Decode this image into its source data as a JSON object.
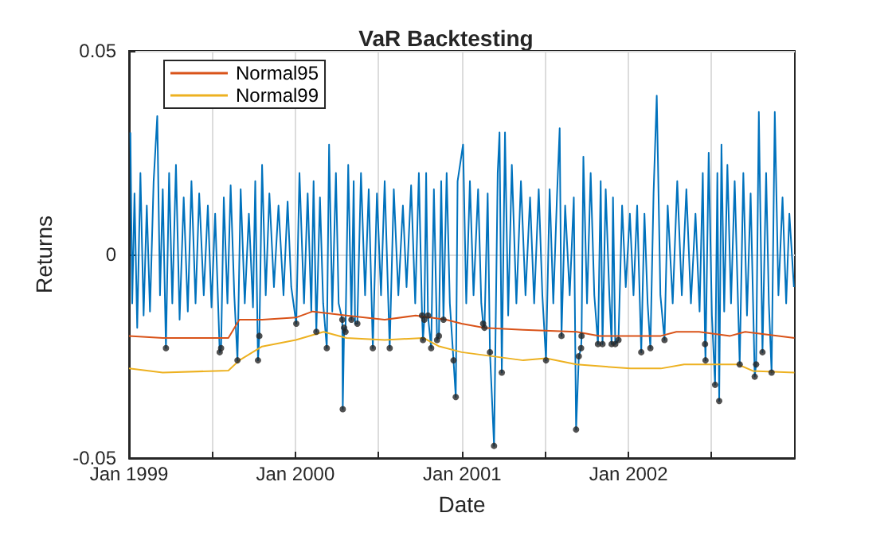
{
  "chart_data": {
    "type": "line",
    "title": "VaR Backtesting",
    "xlabel": "Date",
    "ylabel": "Returns",
    "xlim": [
      "1999-01-01",
      "2003-01-01"
    ],
    "xticks": [
      {
        "value": "1999-01-01",
        "label": "Jan 1999"
      },
      {
        "value": "1999-07-01",
        "label": null
      },
      {
        "value": "2000-01-01",
        "label": "Jan 2000"
      },
      {
        "value": "2000-07-01",
        "label": null
      },
      {
        "value": "2001-01-01",
        "label": "Jan 2001"
      },
      {
        "value": "2001-07-01",
        "label": null
      },
      {
        "value": "2002-01-01",
        "label": "Jan 2002"
      },
      {
        "value": "2002-07-01",
        "label": null
      }
    ],
    "ylim": [
      -0.05,
      0.05
    ],
    "yticks": [
      -0.05,
      0,
      0.05
    ],
    "grid": true,
    "legend": "top left",
    "marker": "none",
    "line_style": "solid",
    "series": [
      {
        "color": "#0072bd",
        "x": [
          "1999-01-04",
          "1999-01-08",
          "1999-01-13",
          "1999-01-19",
          "1999-01-26",
          "1999-02-02",
          "1999-02-09",
          "1999-02-16",
          "1999-02-24",
          "1999-03-04",
          "1999-03-10",
          "1999-03-16",
          "1999-03-23",
          "1999-03-30",
          "1999-04-06",
          "1999-04-14",
          "1999-04-22",
          "1999-05-01",
          "1999-05-10",
          "1999-05-18",
          "1999-05-27",
          "1999-06-04",
          "1999-06-14",
          "1999-06-23",
          "1999-07-01",
          "1999-07-09",
          "1999-07-19",
          "1999-07-22",
          "1999-07-28",
          "1999-08-05",
          "1999-08-12",
          "1999-08-20",
          "1999-08-27",
          "1999-09-03",
          "1999-09-12",
          "1999-09-21",
          "1999-09-30",
          "1999-10-05",
          "1999-10-11",
          "1999-10-14",
          "1999-10-20",
          "1999-10-28",
          "1999-11-05",
          "1999-11-15",
          "1999-11-25",
          "1999-12-06",
          "1999-12-15",
          "1999-12-23",
          "2000-01-03",
          "2000-01-10",
          "2000-01-20",
          "2000-01-28",
          "2000-02-05",
          "2000-02-10",
          "2000-02-16",
          "2000-02-24",
          "2000-03-02",
          "2000-03-10",
          "2000-03-15",
          "2000-03-22",
          "2000-03-30",
          "2000-04-05",
          "2000-04-13",
          "2000-04-14",
          "2000-04-17",
          "2000-04-20",
          "2000-04-26",
          "2000-05-03",
          "2000-05-08",
          "2000-05-11",
          "2000-05-16",
          "2000-05-24",
          "2000-06-02",
          "2000-06-10",
          "2000-06-19",
          "2000-06-28",
          "2000-07-07",
          "2000-07-15",
          "2000-07-26",
          "2000-08-04",
          "2000-08-14",
          "2000-08-24",
          "2000-09-01",
          "2000-09-11",
          "2000-09-20",
          "2000-09-28",
          "2000-10-05",
          "2000-10-07",
          "2000-10-10",
          "2000-10-14",
          "2000-10-18",
          "2000-10-25",
          "2000-10-31",
          "2000-11-07",
          "2000-11-11",
          "2000-11-16",
          "2000-11-21",
          "2000-11-28",
          "2000-12-05",
          "2000-12-13",
          "2000-12-18",
          "2000-12-22",
          "2001-01-03",
          "2001-01-10",
          "2001-01-18",
          "2001-01-26",
          "2001-02-05",
          "2001-02-12",
          "2001-02-16",
          "2001-02-19",
          "2001-02-26",
          "2001-03-03",
          "2001-03-12",
          "2001-03-20",
          "2001-03-24",
          "2001-03-29",
          "2001-04-05",
          "2001-04-12",
          "2001-04-20",
          "2001-04-30",
          "2001-05-10",
          "2001-05-20",
          "2001-05-30",
          "2001-06-08",
          "2001-06-18",
          "2001-06-26",
          "2001-07-04",
          "2001-07-12",
          "2001-07-20",
          "2001-07-28",
          "2001-08-03",
          "2001-08-07",
          "2001-08-15",
          "2001-08-25",
          "2001-09-03",
          "2001-09-08",
          "2001-09-14",
          "2001-09-19",
          "2001-09-20",
          "2001-09-24",
          "2001-10-02",
          "2001-10-10",
          "2001-10-18",
          "2001-10-26",
          "2001-11-01",
          "2001-11-05",
          "2001-11-12",
          "2001-11-20",
          "2001-11-25",
          "2001-11-28",
          "2001-12-03",
          "2001-12-10",
          "2001-12-18",
          "2001-12-26",
          "2002-01-04",
          "2002-01-12",
          "2002-01-20",
          "2002-01-29",
          "2002-02-05",
          "2002-02-12",
          "2002-02-18",
          "2002-02-25",
          "2002-03-04",
          "2002-03-12",
          "2002-03-21",
          "2002-03-28",
          "2002-04-08",
          "2002-04-18",
          "2002-04-28",
          "2002-05-08",
          "2002-05-18",
          "2002-05-28",
          "2002-06-06",
          "2002-06-13",
          "2002-06-18",
          "2002-06-19",
          "2002-06-26",
          "2002-07-03",
          "2002-07-10",
          "2002-07-15",
          "2002-07-19",
          "2002-07-24",
          "2002-07-30",
          "2002-08-06",
          "2002-08-14",
          "2002-08-22",
          "2002-09-02",
          "2002-09-10",
          "2002-09-18",
          "2002-09-26",
          "2002-10-05",
          "2002-10-08",
          "2002-10-14",
          "2002-10-22",
          "2002-10-30",
          "2002-11-05",
          "2002-11-11",
          "2002-11-18",
          "2002-11-26",
          "2002-12-05",
          "2002-12-13",
          "2002-12-20",
          "2002-12-30"
        ],
        "values": [
          0.03,
          -0.012,
          0.015,
          -0.018,
          0.02,
          -0.015,
          0.012,
          -0.014,
          0.018,
          0.034,
          -0.01,
          0.016,
          -0.023,
          0.02,
          -0.012,
          0.022,
          -0.016,
          0.014,
          -0.014,
          0.018,
          -0.012,
          0.015,
          -0.01,
          0.012,
          -0.013,
          0.01,
          -0.024,
          -0.023,
          0.014,
          -0.012,
          0.017,
          -0.01,
          -0.026,
          0.016,
          -0.012,
          0.01,
          -0.013,
          0.018,
          -0.026,
          -0.02,
          0.022,
          -0.01,
          0.015,
          -0.008,
          0.012,
          -0.01,
          0.013,
          -0.008,
          -0.017,
          0.02,
          -0.012,
          0.015,
          -0.014,
          0.018,
          -0.019,
          0.014,
          -0.012,
          -0.023,
          0.027,
          -0.014,
          0.02,
          -0.012,
          -0.016,
          -0.038,
          -0.018,
          -0.019,
          0.022,
          -0.016,
          0.018,
          -0.017,
          -0.017,
          0.02,
          -0.01,
          0.016,
          -0.023,
          0.015,
          -0.01,
          0.018,
          -0.023,
          0.016,
          -0.01,
          0.012,
          -0.008,
          0.017,
          -0.012,
          0.02,
          -0.015,
          -0.021,
          -0.016,
          0.02,
          -0.015,
          -0.023,
          0.016,
          -0.021,
          -0.02,
          0.018,
          -0.016,
          0.02,
          -0.012,
          -0.026,
          -0.035,
          0.018,
          0.027,
          -0.012,
          0.018,
          -0.01,
          0.016,
          -0.012,
          -0.017,
          -0.018,
          0.015,
          -0.024,
          -0.047,
          0.02,
          0.03,
          -0.029,
          0.03,
          -0.015,
          0.022,
          -0.012,
          0.018,
          -0.01,
          0.014,
          -0.012,
          0.016,
          -0.01,
          -0.026,
          0.016,
          -0.012,
          0.014,
          0.031,
          -0.02,
          0.012,
          -0.01,
          0.014,
          -0.043,
          -0.025,
          -0.023,
          -0.02,
          0.024,
          -0.012,
          0.02,
          -0.01,
          -0.022,
          0.018,
          -0.022,
          0.016,
          -0.01,
          -0.022,
          0.014,
          -0.022,
          -0.021,
          0.012,
          -0.008,
          0.01,
          -0.01,
          0.012,
          -0.024,
          0.01,
          -0.012,
          -0.023,
          0.015,
          0.039,
          -0.01,
          -0.021,
          0.012,
          -0.012,
          0.018,
          -0.01,
          0.016,
          -0.012,
          0.01,
          -0.014,
          0.02,
          -0.022,
          -0.026,
          0.025,
          -0.015,
          -0.032,
          0.02,
          -0.036,
          0.027,
          -0.014,
          0.022,
          -0.012,
          0.018,
          -0.027,
          0.02,
          -0.015,
          0.015,
          -0.03,
          -0.027,
          0.035,
          -0.024,
          0.02,
          -0.012,
          -0.029,
          0.035,
          -0.01,
          0.014,
          -0.012,
          0.01,
          -0.008
        ]
      },
      {
        "name": "Normal95",
        "color": "#d95319",
        "x": [
          "1999-01-01",
          "1999-03-16",
          "1999-08-07",
          "1999-08-31",
          "1999-10-20",
          "2000-01-02",
          "2000-02-08",
          "2000-04-22",
          "2000-07-15",
          "2000-09-21",
          "2000-11-27",
          "2000-12-31",
          "2001-02-19",
          "2001-05-15",
          "2001-09-09",
          "2001-10-29",
          "2002-03-13",
          "2002-04-16",
          "2002-06-05",
          "2002-08-12",
          "2002-09-14",
          "2002-12-31"
        ],
        "values": [
          -0.02,
          -0.0205,
          -0.0205,
          -0.016,
          -0.016,
          -0.0155,
          -0.014,
          -0.015,
          -0.016,
          -0.015,
          -0.016,
          -0.017,
          -0.018,
          -0.0185,
          -0.019,
          -0.02,
          -0.02,
          -0.019,
          -0.019,
          -0.02,
          -0.019,
          -0.0205
        ]
      },
      {
        "name": "Normal99",
        "color": "#edb120",
        "x": [
          "1999-01-01",
          "1999-03-16",
          "1999-08-07",
          "1999-08-31",
          "1999-10-20",
          "2000-01-02",
          "2000-03-03",
          "2000-04-22",
          "2000-07-15",
          "2000-10-08",
          "2000-11-10",
          "2000-12-31",
          "2001-05-15",
          "2001-07-04",
          "2001-09-09",
          "2002-01-05",
          "2002-03-13",
          "2002-05-03",
          "2002-08-29",
          "2002-10-01",
          "2002-12-31"
        ],
        "values": [
          -0.028,
          -0.029,
          -0.0285,
          -0.026,
          -0.0226,
          -0.021,
          -0.019,
          -0.0205,
          -0.021,
          -0.0205,
          -0.0225,
          -0.024,
          -0.026,
          -0.0255,
          -0.027,
          -0.028,
          -0.028,
          -0.027,
          -0.027,
          -0.0286,
          -0.029
        ]
      },
      {
        "type": "scatter",
        "color": "#262626",
        "marker": "circle",
        "x": [
          "1999-03-23",
          "1999-07-19",
          "1999-07-22",
          "1999-08-27",
          "1999-10-11",
          "1999-10-14",
          "2000-01-03",
          "2000-02-16",
          "2000-03-10",
          "2000-04-13",
          "2000-04-14",
          "2000-04-17",
          "2000-04-20",
          "2000-05-03",
          "2000-05-11",
          "2000-05-16",
          "2000-06-19",
          "2000-07-26",
          "2000-10-05",
          "2000-10-07",
          "2000-10-10",
          "2000-10-18",
          "2000-10-25",
          "2000-11-07",
          "2000-11-11",
          "2000-11-21",
          "2000-12-13",
          "2000-12-18",
          "2001-02-16",
          "2001-02-19",
          "2001-03-03",
          "2001-03-12",
          "2001-03-29",
          "2001-07-04",
          "2001-08-07",
          "2001-09-08",
          "2001-09-14",
          "2001-09-19",
          "2001-09-20",
          "2001-10-26",
          "2001-11-05",
          "2001-11-25",
          "2001-12-03",
          "2001-12-10",
          "2002-01-29",
          "2002-02-18",
          "2002-03-21",
          "2002-06-18",
          "2002-06-19",
          "2002-07-10",
          "2002-07-19",
          "2002-09-02",
          "2002-10-05",
          "2002-10-08",
          "2002-10-22",
          "2002-11-11"
        ],
        "values": [
          -0.023,
          -0.024,
          -0.023,
          -0.026,
          -0.026,
          -0.02,
          -0.017,
          -0.019,
          -0.023,
          -0.016,
          -0.038,
          -0.018,
          -0.019,
          -0.016,
          null,
          -0.017,
          -0.023,
          -0.023,
          -0.015,
          -0.021,
          -0.016,
          -0.015,
          -0.023,
          -0.021,
          -0.02,
          -0.016,
          -0.026,
          -0.035,
          -0.017,
          -0.018,
          -0.024,
          -0.047,
          -0.029,
          -0.026,
          -0.02,
          -0.043,
          -0.025,
          -0.023,
          -0.02,
          -0.022,
          -0.022,
          -0.022,
          -0.022,
          -0.021,
          -0.024,
          -0.023,
          -0.021,
          -0.022,
          -0.026,
          -0.032,
          -0.036,
          -0.027,
          -0.03,
          -0.027,
          -0.024,
          -0.029
        ]
      }
    ]
  }
}
